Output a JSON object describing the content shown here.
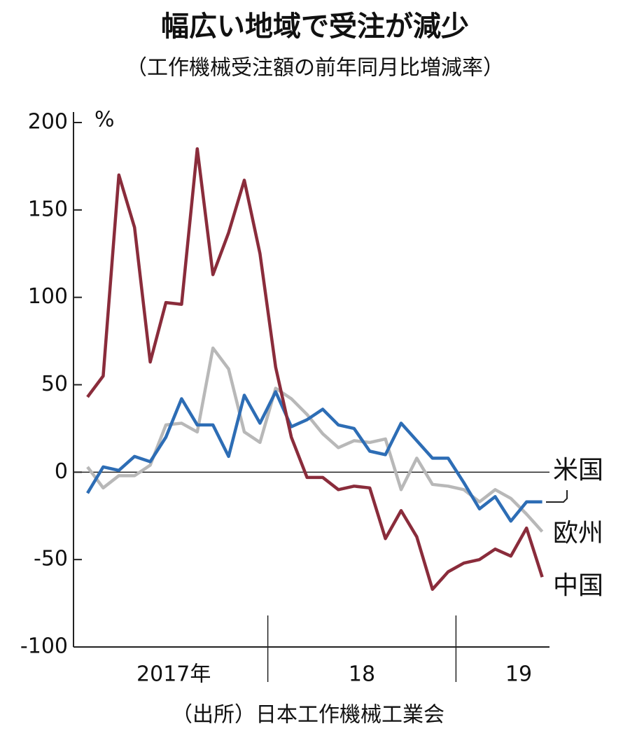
{
  "chart_data": {
    "type": "line",
    "title": "幅広い地域で受注が減少",
    "subtitle": "（工作機械受注額の前年同月比増減率）",
    "y_label": "%",
    "source": "（出所）日本工作機械工業会",
    "categories": [
      null,
      null,
      null,
      null,
      null,
      "2017年",
      null,
      null,
      null,
      null,
      null,
      null,
      null,
      null,
      null,
      null,
      null,
      "18",
      null,
      null,
      null,
      null,
      null,
      null,
      null,
      null,
      null,
      "19",
      null,
      null
    ],
    "series": [
      {
        "name": "米国",
        "color": "#2d6db5",
        "values": [
          -12,
          3,
          1,
          9,
          6,
          20,
          42,
          27,
          27,
          9,
          44,
          28,
          46,
          26,
          30,
          36,
          27,
          25,
          12,
          10,
          28,
          18,
          8,
          8,
          -6,
          -21,
          -14,
          -28,
          -17,
          -17
        ]
      },
      {
        "name": "欧州",
        "color": "#b8b8b8",
        "values": [
          3,
          -9,
          -2,
          -2,
          4,
          27,
          28,
          23,
          71,
          59,
          23,
          17,
          48,
          42,
          33,
          22,
          14,
          18,
          17,
          19,
          -10,
          8,
          -7,
          -8,
          -10,
          -17,
          -10,
          -15,
          -24,
          -34
        ]
      },
      {
        "name": "中国",
        "color": "#8a2c3b",
        "values": [
          43,
          55,
          170,
          140,
          63,
          97,
          96,
          185,
          113,
          137,
          167,
          125,
          60,
          20,
          -3,
          -3,
          -10,
          -8,
          -9,
          -38,
          -22,
          -37,
          -67,
          -57,
          -52,
          -50,
          -44,
          -48,
          -32,
          -60
        ]
      }
    ],
    "ylim": [
      -100,
      200
    ],
    "yticks": [
      200,
      150,
      100,
      50,
      0,
      -50,
      -100
    ]
  }
}
